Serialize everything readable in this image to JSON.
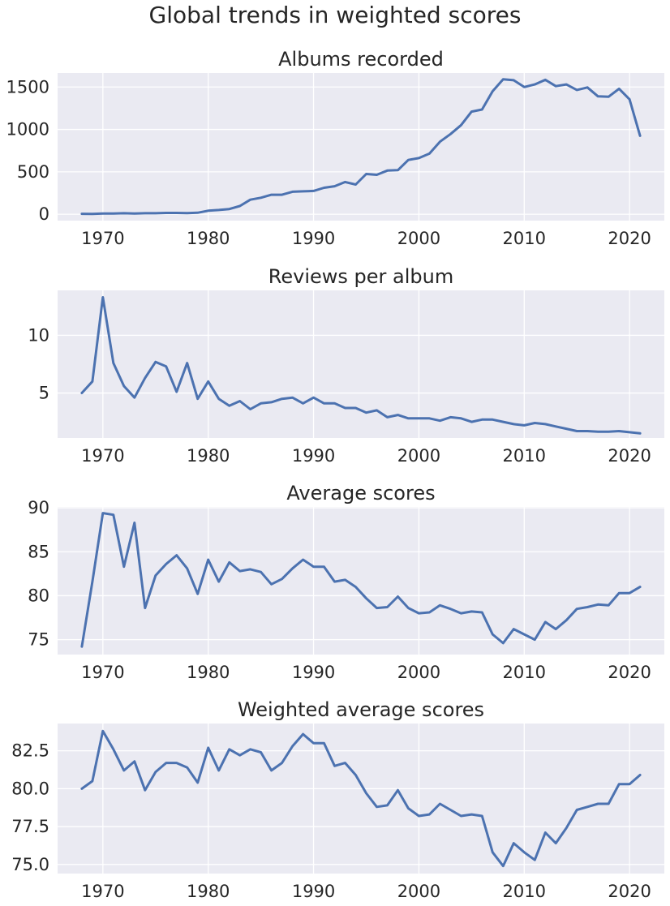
{
  "figure": {
    "title": "Global trends in weighted scores",
    "line_color": "#4c72b0",
    "panel_background": "#eaeaf2",
    "grid_color": "#ffffff"
  },
  "chart_data": [
    {
      "type": "line",
      "title": "Albums recorded",
      "xlabel": "",
      "ylabel": "",
      "grid": true,
      "xlim": [
        1965.7,
        2023.3
      ],
      "ylim": [
        -75,
        1665
      ],
      "xticks": [
        1970,
        1980,
        1990,
        2000,
        2010,
        2020
      ],
      "yticks": [
        0,
        500,
        1000,
        1500
      ],
      "ytick_labels": [
        "0",
        "500",
        "1000",
        "1500"
      ],
      "x": [
        1968,
        1969,
        1970,
        1971,
        1972,
        1973,
        1974,
        1975,
        1976,
        1977,
        1978,
        1979,
        1980,
        1981,
        1982,
        1983,
        1984,
        1985,
        1986,
        1987,
        1988,
        1989,
        1990,
        1991,
        1992,
        1993,
        1994,
        1995,
        1996,
        1997,
        1998,
        1999,
        2000,
        2001,
        2002,
        2003,
        2004,
        2005,
        2006,
        2007,
        2008,
        2009,
        2010,
        2011,
        2012,
        2013,
        2014,
        2015,
        2016,
        2017,
        2018,
        2019,
        2020,
        2021
      ],
      "series": [
        {
          "values": [
            5,
            3,
            8,
            8,
            12,
            8,
            12,
            12,
            16,
            16,
            14,
            18,
            42,
            50,
            62,
            97,
            172,
            195,
            230,
            230,
            265,
            270,
            275,
            312,
            330,
            380,
            350,
            475,
            465,
            515,
            520,
            640,
            662,
            715,
            855,
            945,
            1050,
            1210,
            1235,
            1450,
            1590,
            1580,
            1500,
            1530,
            1585,
            1510,
            1530,
            1465,
            1495,
            1390,
            1385,
            1480,
            1355,
            925
          ]
        }
      ]
    },
    {
      "type": "line",
      "title": "Reviews per album",
      "xlabel": "",
      "ylabel": "",
      "grid": true,
      "xlim": [
        1965.7,
        2023.3
      ],
      "ylim": [
        1.1,
        13.9
      ],
      "xticks": [
        1970,
        1980,
        1990,
        2000,
        2010,
        2020
      ],
      "yticks": [
        5,
        10
      ],
      "ytick_labels": [
        "5",
        "10"
      ],
      "x": [
        1968,
        1969,
        1970,
        1971,
        1972,
        1973,
        1974,
        1975,
        1976,
        1977,
        1978,
        1979,
        1980,
        1981,
        1982,
        1983,
        1984,
        1985,
        1986,
        1987,
        1988,
        1989,
        1990,
        1991,
        1992,
        1993,
        1994,
        1995,
        1996,
        1997,
        1998,
        1999,
        2000,
        2001,
        2002,
        2003,
        2004,
        2005,
        2006,
        2007,
        2008,
        2009,
        2010,
        2011,
        2012,
        2013,
        2014,
        2015,
        2016,
        2017,
        2018,
        2019,
        2020,
        2021
      ],
      "series": [
        {
          "values": [
            5.0,
            6.0,
            13.3,
            7.6,
            5.6,
            4.6,
            6.3,
            7.7,
            7.3,
            5.1,
            7.6,
            4.5,
            6.0,
            4.5,
            3.9,
            4.3,
            3.6,
            4.1,
            4.2,
            4.5,
            4.6,
            4.1,
            4.6,
            4.1,
            4.1,
            3.7,
            3.7,
            3.3,
            3.5,
            2.9,
            3.1,
            2.8,
            2.8,
            2.8,
            2.6,
            2.9,
            2.8,
            2.5,
            2.7,
            2.7,
            2.5,
            2.3,
            2.2,
            2.4,
            2.3,
            2.1,
            1.9,
            1.7,
            1.7,
            1.65,
            1.65,
            1.7,
            1.6,
            1.5
          ]
        }
      ]
    },
    {
      "type": "line",
      "title": "Average scores",
      "xlabel": "",
      "ylabel": "",
      "grid": true,
      "xlim": [
        1965.7,
        2023.3
      ],
      "ylim": [
        73.3,
        90.1
      ],
      "xticks": [
        1970,
        1980,
        1990,
        2000,
        2010,
        2020
      ],
      "yticks": [
        75,
        80,
        85,
        90
      ],
      "ytick_labels": [
        "75",
        "80",
        "85",
        "90"
      ],
      "x": [
        1968,
        1969,
        1970,
        1971,
        1972,
        1973,
        1974,
        1975,
        1976,
        1977,
        1978,
        1979,
        1980,
        1981,
        1982,
        1983,
        1984,
        1985,
        1986,
        1987,
        1988,
        1989,
        1990,
        1991,
        1992,
        1993,
        1994,
        1995,
        1996,
        1997,
        1998,
        1999,
        2000,
        2001,
        2002,
        2003,
        2004,
        2005,
        2006,
        2007,
        2008,
        2009,
        2010,
        2011,
        2012,
        2013,
        2014,
        2015,
        2016,
        2017,
        2018,
        2019,
        2020,
        2021
      ],
      "series": [
        {
          "values": [
            74.2,
            81.6,
            89.4,
            89.2,
            83.3,
            88.3,
            78.6,
            82.3,
            83.6,
            84.6,
            83.1,
            80.2,
            84.1,
            81.6,
            83.8,
            82.8,
            83.0,
            82.7,
            81.3,
            81.9,
            83.1,
            84.1,
            83.3,
            83.3,
            81.6,
            81.8,
            81.0,
            79.7,
            78.6,
            78.7,
            79.9,
            78.6,
            78.0,
            78.1,
            78.9,
            78.5,
            78.0,
            78.2,
            78.1,
            75.6,
            74.6,
            76.2,
            75.6,
            75.0,
            77.0,
            76.2,
            77.2,
            78.5,
            78.7,
            79.0,
            78.9,
            80.3,
            80.3,
            81.0
          ]
        }
      ]
    },
    {
      "type": "line",
      "title": "Weighted average scores",
      "xlabel": "",
      "ylabel": "",
      "grid": true,
      "xlim": [
        1965.7,
        2023.3
      ],
      "ylim": [
        74.4,
        84.3
      ],
      "xticks": [
        1970,
        1980,
        1990,
        2000,
        2010,
        2020
      ],
      "yticks": [
        75.0,
        77.5,
        80.0,
        82.5
      ],
      "ytick_labels": [
        "75.0",
        "77.5",
        "80.0",
        "82.5"
      ],
      "x": [
        1968,
        1969,
        1970,
        1971,
        1972,
        1973,
        1974,
        1975,
        1976,
        1977,
        1978,
        1979,
        1980,
        1981,
        1982,
        1983,
        1984,
        1985,
        1986,
        1987,
        1988,
        1989,
        1990,
        1991,
        1992,
        1993,
        1994,
        1995,
        1996,
        1997,
        1998,
        1999,
        2000,
        2001,
        2002,
        2003,
        2004,
        2005,
        2006,
        2007,
        2008,
        2009,
        2010,
        2011,
        2012,
        2013,
        2014,
        2015,
        2016,
        2017,
        2018,
        2019,
        2020,
        2021
      ],
      "series": [
        {
          "values": [
            80.0,
            80.5,
            83.8,
            82.6,
            81.2,
            81.8,
            79.9,
            81.1,
            81.7,
            81.7,
            81.4,
            80.4,
            82.7,
            81.2,
            82.6,
            82.2,
            82.6,
            82.4,
            81.2,
            81.7,
            82.8,
            83.6,
            83.0,
            83.0,
            81.5,
            81.7,
            80.9,
            79.7,
            78.8,
            78.9,
            79.9,
            78.7,
            78.2,
            78.3,
            79.0,
            78.6,
            78.2,
            78.3,
            78.2,
            75.8,
            74.9,
            76.4,
            75.8,
            75.3,
            77.1,
            76.4,
            77.4,
            78.6,
            78.8,
            79.0,
            79.0,
            80.3,
            80.3,
            80.9
          ]
        }
      ]
    }
  ]
}
